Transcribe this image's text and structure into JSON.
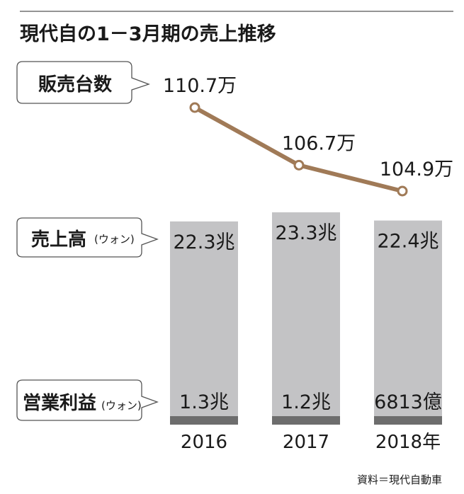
{
  "title": "現代自の1－3月期の売上推移",
  "source": "資料＝現代自動車",
  "callouts": {
    "units_sold": "販売台数",
    "revenue": "売上高",
    "revenue_unit": "(ウォン)",
    "operating_profit": "営業利益",
    "operating_profit_unit": "(ウォン)"
  },
  "colors": {
    "bar": "#c3c3c5",
    "profit_bar": "#6d6d6d",
    "line": "#a07a57",
    "marker_fill": "#ffffff"
  },
  "chart_data": {
    "type": "bar+line",
    "categories": [
      "2016",
      "2017",
      "2018年"
    ],
    "units_sold": {
      "values": [
        1107000,
        1067000,
        1049000
      ],
      "labels": [
        "110.7万",
        "106.7万",
        "104.9万"
      ]
    },
    "revenue": {
      "values_trillion_won": [
        22.3,
        23.3,
        22.4
      ],
      "labels": [
        "22.3兆",
        "23.3兆",
        "22.4兆"
      ]
    },
    "operating_profit": {
      "values_trillion_won": [
        1.3,
        1.2,
        0.6813
      ],
      "labels": [
        "1.3兆",
        "1.2兆",
        "6813億"
      ]
    }
  }
}
